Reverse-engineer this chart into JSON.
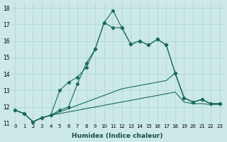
{
  "xlabel": "Humidex (Indice chaleur)",
  "background_color": "#cce8e8",
  "grid_color": "#aad4d4",
  "line_color": "#1a6b5a",
  "xlim": [
    0,
    23
  ],
  "ylim": [
    11,
    18
  ],
  "x": [
    0,
    1,
    2,
    3,
    4,
    5,
    6,
    7,
    8,
    9,
    10,
    11,
    12,
    13,
    14,
    15,
    16,
    17,
    18,
    19,
    20,
    21,
    22,
    23
  ],
  "line1": [
    11.8,
    11.6,
    11.1,
    11.35,
    11.5,
    11.6,
    11.7,
    11.8,
    11.9,
    12.0,
    12.1,
    12.2,
    12.3,
    12.4,
    12.5,
    12.6,
    12.7,
    12.8,
    12.9,
    12.3,
    12.2,
    12.2,
    12.15,
    12.15
  ],
  "line2": [
    11.8,
    11.6,
    11.1,
    11.35,
    11.5,
    11.7,
    11.9,
    12.1,
    12.3,
    12.5,
    12.7,
    12.9,
    13.1,
    13.2,
    13.3,
    13.4,
    13.5,
    13.6,
    14.05,
    12.55,
    12.3,
    12.45,
    12.2,
    12.2
  ],
  "line3_x": [
    0,
    1,
    2,
    3,
    4,
    5,
    6,
    7,
    8,
    9,
    10,
    11,
    12,
    13,
    14,
    15,
    16,
    17,
    18,
    19,
    20,
    21,
    22,
    23
  ],
  "line3": [
    11.8,
    11.6,
    11.1,
    11.35,
    11.5,
    13.0,
    13.5,
    13.8,
    14.4,
    15.5,
    17.1,
    16.8,
    16.8,
    15.8,
    16.0,
    15.75,
    16.1,
    15.75,
    14.05,
    12.55,
    12.3,
    12.45,
    12.2,
    12.2
  ],
  "line4_x": [
    0,
    1,
    2,
    3,
    4,
    5,
    6,
    7,
    8,
    9,
    10,
    11,
    12,
    13,
    14,
    15,
    16,
    17,
    18,
    19,
    20,
    21,
    22,
    23
  ],
  "line4": [
    11.8,
    11.6,
    11.1,
    11.35,
    11.5,
    11.8,
    12.0,
    13.4,
    14.65,
    15.5,
    17.1,
    17.85,
    16.8,
    15.8,
    16.0,
    15.75,
    16.1,
    15.75,
    14.05,
    12.55,
    12.3,
    12.45,
    12.2,
    12.2
  ]
}
